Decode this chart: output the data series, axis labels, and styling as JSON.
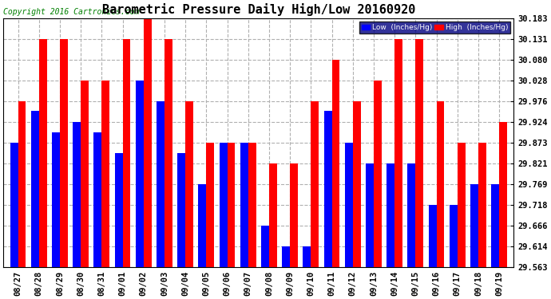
{
  "title": "Barometric Pressure Daily High/Low 20160920",
  "copyright": "Copyright 2016 Cartronics.com",
  "categories": [
    "08/27",
    "08/28",
    "08/29",
    "08/30",
    "08/31",
    "09/01",
    "09/02",
    "09/03",
    "09/04",
    "09/05",
    "09/06",
    "09/07",
    "09/08",
    "09/09",
    "09/10",
    "09/11",
    "09/12",
    "09/13",
    "09/14",
    "09/15",
    "09/16",
    "09/17",
    "09/18",
    "09/19"
  ],
  "low_values": [
    29.873,
    29.951,
    29.898,
    29.924,
    29.898,
    29.847,
    30.028,
    29.976,
    29.847,
    29.769,
    29.873,
    29.873,
    29.666,
    29.614,
    29.614,
    29.951,
    29.873,
    29.821,
    29.821,
    29.821,
    29.718,
    29.718,
    29.769,
    29.769
  ],
  "high_values": [
    29.976,
    30.131,
    30.131,
    30.028,
    30.028,
    30.131,
    30.183,
    30.131,
    29.976,
    29.873,
    29.873,
    29.873,
    29.821,
    29.821,
    29.976,
    30.08,
    29.976,
    30.028,
    30.131,
    30.131,
    29.976,
    29.873,
    29.873,
    29.924
  ],
  "low_color": "#0000ff",
  "high_color": "#ff0000",
  "ylim_min": 29.563,
  "ylim_max": 30.183,
  "yticks": [
    29.563,
    29.614,
    29.666,
    29.718,
    29.769,
    29.821,
    29.873,
    29.924,
    29.976,
    30.028,
    30.08,
    30.131,
    30.183
  ],
  "bg_color": "#ffffff",
  "plot_bg_color": "#ffffff",
  "grid_color": "#b0b0b0",
  "title_fontsize": 11,
  "tick_fontsize": 7.5,
  "copyright_fontsize": 7
}
